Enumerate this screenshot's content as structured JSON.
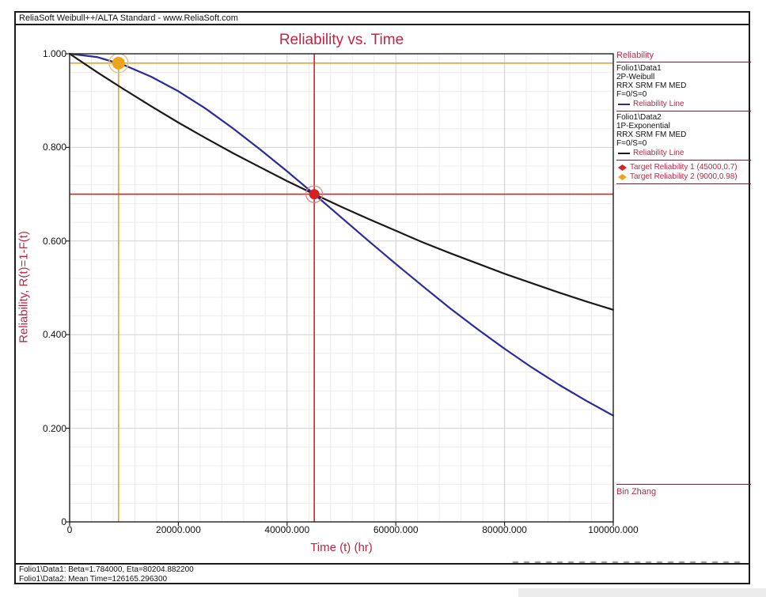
{
  "window": {
    "title": "ReliaSoft Weibull++/ALTA Standard - www.ReliaSoft.com"
  },
  "legend": {
    "header": "Reliability",
    "groups": [
      {
        "source": "Folio1\\Data1",
        "model": "2P-Weibull",
        "method": "RRX SRM FM MED",
        "fs": "F=0/S=0",
        "line_label": "Reliability Line",
        "line_color": "#2a2a99"
      },
      {
        "source": "Folio1\\Data2",
        "model": "1P-Exponential",
        "method": "RRX SRM FM MED",
        "fs": "F=0/S=0",
        "line_label": "Reliability Line",
        "line_color": "#1a1a1a"
      }
    ],
    "targets": [
      {
        "label": "Target Reliability 1 (45000,0.7)",
        "marker_color": "#d42222"
      },
      {
        "label": "Target Reliability 2 (9000,0.98)",
        "marker_color": "#eea31c"
      }
    ],
    "author": "Bin Zhang"
  },
  "footer": {
    "line1": "Folio1\\Data1: Beta=1.784000, Eta=80204.882200",
    "line2": "Folio1\\Data2: Mean Time=126165.296300"
  },
  "colors": {
    "accent_red": "#c02443",
    "weibull_line": "#2a2a99",
    "exponential_line": "#1a1a1a",
    "target1": "#d42222",
    "target2": "#eea31c"
  },
  "chart_data": {
    "type": "line",
    "title": "Reliability vs. Time",
    "xlabel": "Time (t) (hr)",
    "ylabel": "Reliability, R(t)=1-F(t)",
    "xlim": [
      0,
      100000
    ],
    "ylim": [
      0,
      1
    ],
    "grid": true,
    "legend_position": "right",
    "x_ticks": [
      0,
      20000,
      40000,
      60000,
      80000,
      100000
    ],
    "x_tick_labels": [
      "0",
      "20000.000",
      "40000.000",
      "60000.000",
      "80000.000",
      "100000.000"
    ],
    "y_ticks": [
      0,
      0.2,
      0.4,
      0.6,
      0.8,
      1
    ],
    "y_tick_labels": [
      "0",
      "0.200",
      "0.400",
      "0.600",
      "0.800",
      "1.000"
    ],
    "x_minor_per_major": 5,
    "y_minor_per_major": 5,
    "series": [
      {
        "name": "Folio1\\Data1 2P-Weibull Reliability Line",
        "color": "#2a2a99",
        "x": [
          0,
          5000,
          10000,
          15000,
          20000,
          25000,
          30000,
          35000,
          40000,
          45000,
          50000,
          55000,
          60000,
          65000,
          70000,
          75000,
          80000,
          85000,
          90000,
          95000,
          100000
        ],
        "y": [
          1.0,
          0.993,
          0.976,
          0.951,
          0.92,
          0.883,
          0.841,
          0.796,
          0.749,
          0.7,
          0.65,
          0.6,
          0.551,
          0.503,
          0.456,
          0.412,
          0.37,
          0.33,
          0.293,
          0.259,
          0.227
        ]
      },
      {
        "name": "Folio1\\Data2 1P-Exponential Reliability Line",
        "color": "#1a1a1a",
        "x": [
          0,
          5000,
          10000,
          15000,
          20000,
          25000,
          30000,
          35000,
          40000,
          45000,
          50000,
          55000,
          60000,
          65000,
          70000,
          75000,
          80000,
          85000,
          90000,
          95000,
          100000
        ],
        "y": [
          1.0,
          0.961,
          0.924,
          0.888,
          0.853,
          0.82,
          0.788,
          0.758,
          0.728,
          0.7,
          0.673,
          0.647,
          0.622,
          0.597,
          0.574,
          0.552,
          0.53,
          0.51,
          0.49,
          0.471,
          0.453
        ]
      }
    ],
    "targets": [
      {
        "name": "Target Reliability 1",
        "t": 45000,
        "r": 0.7,
        "color": "#d42222",
        "ring": "#e08585",
        "radius": 6.5,
        "vline_full": true
      },
      {
        "name": "Target Reliability 2",
        "t": 9000,
        "r": 0.98,
        "color": "#eea31c",
        "ring": "#e3c277",
        "radius": 8,
        "vline_full": false
      }
    ],
    "params": {
      "beta": 1.784,
      "eta": 80204.8822,
      "mean_time": 126165.2963
    }
  }
}
